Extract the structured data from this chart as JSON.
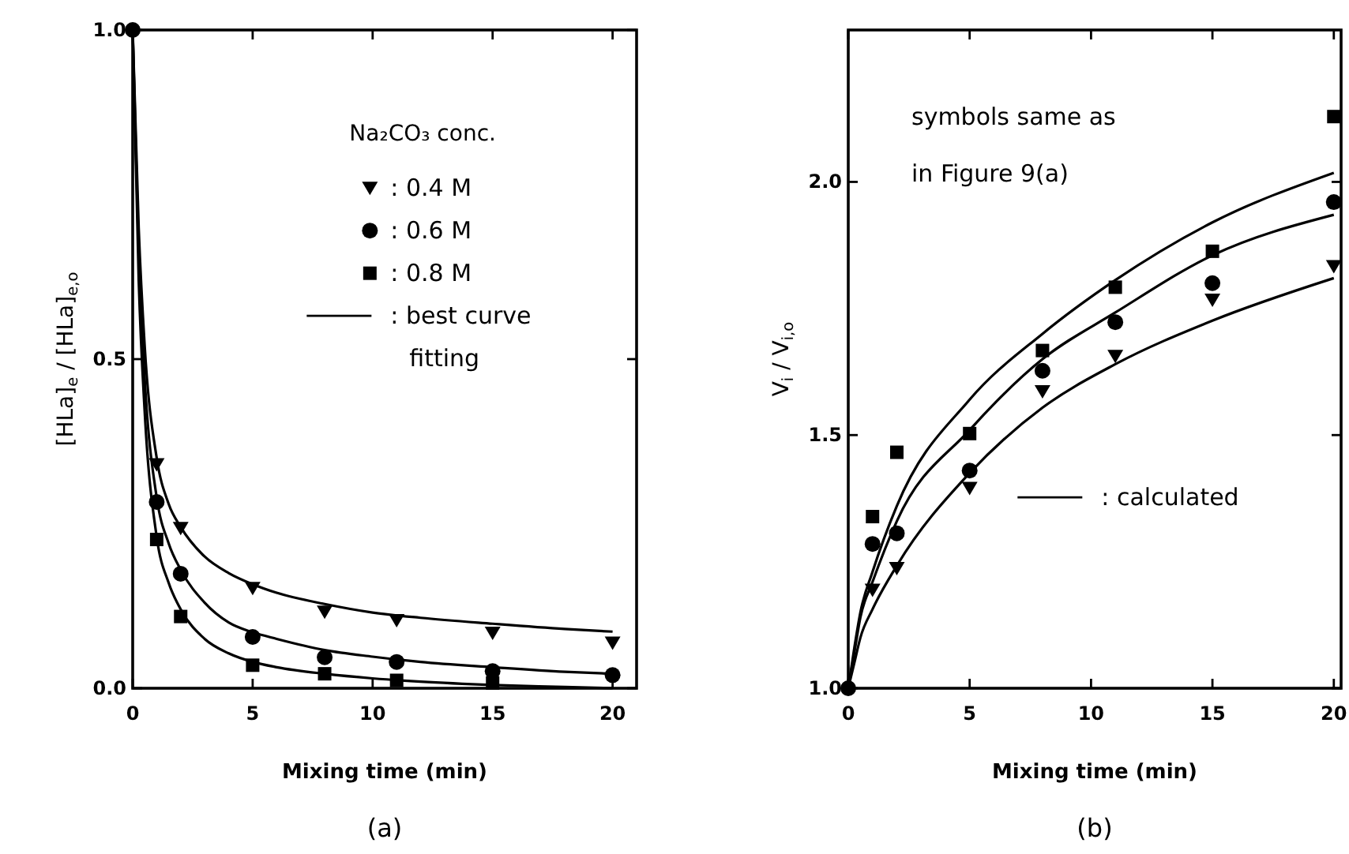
{
  "chart_data": [
    {
      "type": "scatter",
      "title": "(a)",
      "xlabel": "Mixing time (min)",
      "ylabel": "[HLa]$_{e}$ / [HLa]$_{e,o}$",
      "legend_title": "Na₂CO₃ conc.",
      "legend": "top right",
      "xlim": [
        0,
        21
      ],
      "xticks": [
        0,
        5,
        10,
        15,
        20
      ],
      "ylim": [
        0,
        1
      ],
      "yticks": [
        {
          "value": 0,
          "label": "0.0"
        },
        {
          "value": 0.5,
          "label": "0.5"
        },
        {
          "value": 1,
          "label": "1.0"
        }
      ],
      "x": [
        0,
        1,
        2,
        5,
        8,
        11,
        15,
        20
      ],
      "series": [
        {
          "name": ": 0.4 M",
          "color": "#000000",
          "marker": "triangle",
          "values": [
            null,
            0.34,
            0.243,
            0.152,
            0.116,
            0.103,
            0.084,
            0.069
          ]
        },
        {
          "name": ": 0.6 M",
          "color": "#000000",
          "marker": "circle",
          "values": [
            1,
            0.283,
            0.174,
            0.078,
            0.047,
            0.04,
            0.026,
            0.02
          ]
        },
        {
          "name": ": 0.8 M",
          "color": "#000000",
          "marker": "square",
          "values": [
            null,
            0.226,
            0.109,
            0.035,
            0.022,
            0.012,
            0.008,
            null
          ]
        },
        {
          "type": "line",
          "name": ": best curve fitting",
          "color": "#000000",
          "line_style": "solid",
          "x": [
            0,
            0.25,
            0.5,
            1,
            1.5,
            2,
            3,
            4,
            5,
            6,
            8,
            10,
            12,
            15,
            18,
            20
          ],
          "values": [
            1,
            0.7,
            0.52,
            0.35,
            0.28,
            0.245,
            0.2,
            0.175,
            0.158,
            0.145,
            0.128,
            0.115,
            0.107,
            0.098,
            0.09,
            0.086
          ]
        },
        {
          "type": "line",
          "color": "#000000",
          "line_style": "solid",
          "x": [
            0,
            0.25,
            0.5,
            1,
            1.5,
            2,
            3,
            4,
            5,
            6,
            8,
            10,
            12,
            15,
            18,
            20
          ],
          "values": [
            1,
            0.66,
            0.47,
            0.29,
            0.22,
            0.18,
            0.13,
            0.1,
            0.085,
            0.075,
            0.058,
            0.048,
            0.04,
            0.032,
            0.025,
            0.022
          ]
        },
        {
          "type": "line",
          "color": "#000000",
          "line_style": "solid",
          "x": [
            0,
            0.25,
            0.5,
            1,
            1.5,
            2,
            3,
            4,
            5,
            6,
            8,
            10,
            12,
            15,
            18,
            20
          ],
          "values": [
            1,
            0.62,
            0.42,
            0.23,
            0.16,
            0.12,
            0.075,
            0.053,
            0.04,
            0.032,
            0.022,
            0.015,
            0.01,
            0.005,
            0.002,
            0
          ]
        }
      ]
    },
    {
      "type": "scatter",
      "title": "(b)",
      "xlabel": "Mixing time (min)",
      "ylabel": "V$_{i}$ / V$_{i,o}$",
      "legend": "right",
      "annotations": [
        "symbols same as in Figure 9(a)"
      ],
      "xlim": [
        0,
        20.3
      ],
      "xticks": [
        0,
        5,
        10,
        15,
        20
      ],
      "ylim": [
        1,
        2.3
      ],
      "yticks": [
        {
          "value": 1,
          "label": "1.0"
        },
        {
          "value": 1.5,
          "label": "1.5"
        },
        {
          "value": 2,
          "label": "2.0"
        }
      ],
      "x": [
        0,
        1,
        2,
        5,
        8,
        11,
        15,
        20
      ],
      "series": [
        {
          "color": "#000000",
          "marker": "triangle",
          "values": [
            null,
            1.194,
            1.237,
            1.395,
            1.586,
            1.656,
            1.767,
            1.833
          ]
        },
        {
          "color": "#000000",
          "marker": "circle",
          "values": [
            1,
            1.285,
            1.306,
            1.43,
            1.627,
            1.723,
            1.8,
            1.96
          ]
        },
        {
          "color": "#000000",
          "marker": "square",
          "values": [
            null,
            1.339,
            1.466,
            1.503,
            1.667,
            1.792,
            1.863,
            2.129
          ]
        },
        {
          "type": "line",
          "name": ": calculated",
          "color": "#000000",
          "line_style": "solid",
          "x": [
            0,
            0.25,
            0.5,
            1,
            2,
            5,
            8,
            11,
            15,
            20
          ],
          "values": [
            1,
            1.08,
            1.15,
            1.23,
            1.36,
            1.57,
            1.7,
            1.806,
            1.92,
            2.018
          ]
        },
        {
          "type": "line",
          "color": "#000000",
          "line_style": "solid",
          "x": [
            0,
            0.25,
            0.5,
            1,
            2,
            5,
            8,
            11,
            15,
            20
          ],
          "values": [
            1,
            1.07,
            1.14,
            1.21,
            1.33,
            1.51,
            1.65,
            1.742,
            1.855,
            1.935
          ]
        },
        {
          "type": "line",
          "color": "#000000",
          "line_style": "solid",
          "x": [
            0,
            0.25,
            0.5,
            1,
            2,
            5,
            8,
            11,
            15,
            20
          ],
          "values": [
            1,
            1.05,
            1.1,
            1.156,
            1.242,
            1.425,
            1.554,
            1.64,
            1.726,
            1.81
          ]
        }
      ]
    }
  ]
}
